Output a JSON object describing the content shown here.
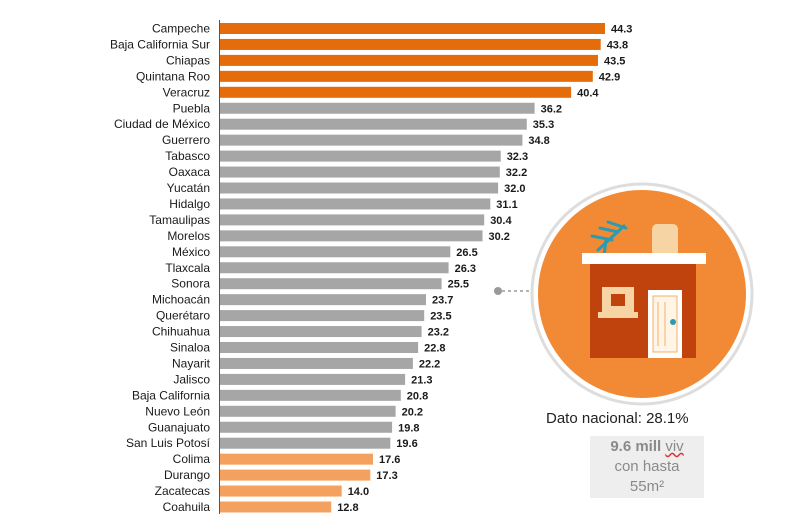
{
  "chart_data": {
    "type": "bar",
    "orientation": "horizontal",
    "categories": [
      "Campeche",
      "Baja California Sur",
      "Chiapas",
      "Quintana Roo",
      "Veracruz",
      "Puebla",
      "Ciudad de México",
      "Guerrero",
      "Tabasco",
      "Oaxaca",
      "Yucatán",
      "Hidalgo",
      "Tamaulipas",
      "Morelos",
      "México",
      "Tlaxcala",
      "Sonora",
      "Michoacán",
      "Querétaro",
      "Chihuahua",
      "Sinaloa",
      "Nayarit",
      "Jalisco",
      "Baja California",
      "Nuevo León",
      "Guanajuato",
      "San Luis Potosí",
      "Colima",
      "Durango",
      "Zacatecas",
      "Coahuila"
    ],
    "values": [
      44.3,
      43.8,
      43.5,
      42.9,
      40.4,
      36.2,
      35.3,
      34.8,
      32.3,
      32.2,
      32.0,
      31.1,
      30.4,
      30.2,
      26.5,
      26.3,
      25.5,
      23.7,
      23.5,
      23.2,
      22.8,
      22.2,
      21.3,
      20.8,
      20.2,
      19.8,
      19.6,
      17.6,
      17.3,
      14.0,
      12.8
    ],
    "value_labels": [
      "44.3",
      "43.8",
      "43.5",
      "42.9",
      "40.4",
      "36.2",
      "35.3",
      "34.8",
      "32.3",
      "32.2",
      "32.0",
      "31.1",
      "30.4",
      "30.2",
      "26.5",
      "26.3",
      "25.5",
      "23.7",
      "23.5",
      "23.2",
      "22.8",
      "22.2",
      "21.3",
      "20.8",
      "20.2",
      "19.8",
      "19.6",
      "17.6",
      "17.3",
      "14.0",
      "12.8"
    ],
    "bar_colors": [
      "#e46c0a",
      "#e46c0a",
      "#e46c0a",
      "#e46c0a",
      "#e46c0a",
      "#a6a6a6",
      "#a6a6a6",
      "#a6a6a6",
      "#a6a6a6",
      "#a6a6a6",
      "#a6a6a6",
      "#a6a6a6",
      "#a6a6a6",
      "#a6a6a6",
      "#a6a6a6",
      "#a6a6a6",
      "#a6a6a6",
      "#a6a6a6",
      "#a6a6a6",
      "#a6a6a6",
      "#a6a6a6",
      "#a6a6a6",
      "#a6a6a6",
      "#a6a6a6",
      "#a6a6a6",
      "#a6a6a6",
      "#a6a6a6",
      "#f4a15f",
      "#f4a15f",
      "#f4a15f",
      "#f4a15f"
    ],
    "xlim": [
      0,
      44.3
    ],
    "grid": false,
    "title": "",
    "xlabel": "",
    "ylabel": ""
  },
  "annotation": {
    "national": "Dato nacional: 28.1%",
    "stat_bold": "9.6 mill",
    "stat_unit": "viv",
    "stat_line2": "con hasta",
    "stat_line3": "55m²"
  },
  "colors": {
    "orange": "#e46c0a",
    "light_orange": "#f4a15f",
    "gray": "#a6a6a6",
    "house_wall": "#c0430e",
    "circle_ring": "#f28a35"
  },
  "icons": [
    "house-icon",
    "antenna-icon",
    "water-tank-icon",
    "door-icon",
    "window-icon"
  ]
}
